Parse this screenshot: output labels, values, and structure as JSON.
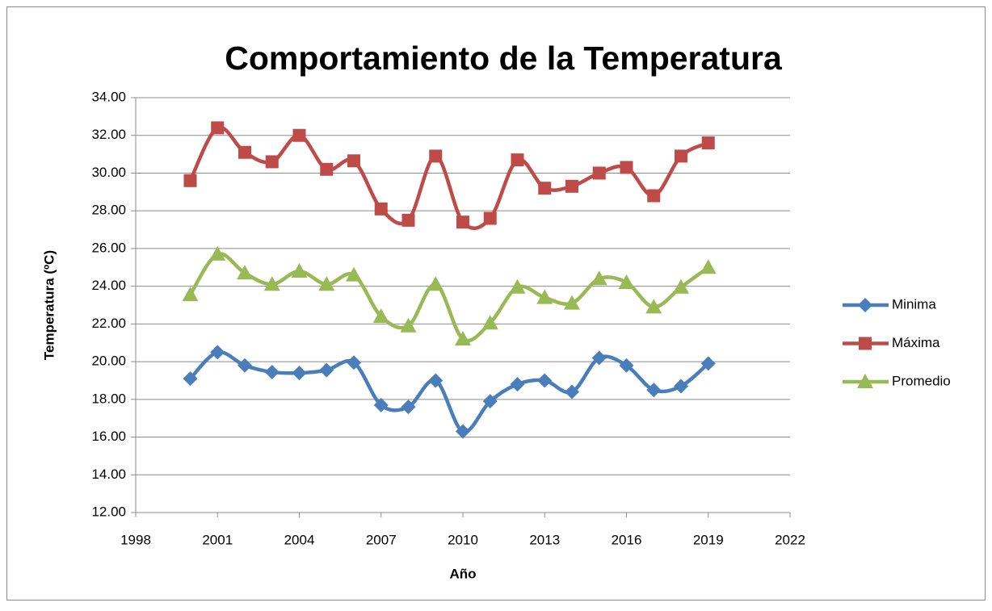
{
  "chart_data": {
    "type": "line",
    "title": "Comportamiento de la Temperatura",
    "xlabel": "Año",
    "ylabel": "Temperatura (ºC)",
    "x": [
      2000,
      2001,
      2002,
      2003,
      2004,
      2005,
      2006,
      2007,
      2008,
      2009,
      2010,
      2011,
      2012,
      2013,
      2014,
      2015,
      2016,
      2017,
      2018,
      2019
    ],
    "series": [
      {
        "name": "Minima",
        "color": "#4a7ebb",
        "marker": "diamond",
        "values": [
          19.1,
          20.5,
          19.8,
          19.45,
          19.4,
          19.55,
          19.95,
          17.7,
          17.6,
          19.0,
          16.3,
          17.9,
          18.8,
          19.0,
          18.4,
          20.2,
          19.8,
          18.5,
          18.7,
          19.9
        ]
      },
      {
        "name": "Máxima",
        "color": "#be4b48",
        "marker": "square",
        "values": [
          29.6,
          32.4,
          31.1,
          30.6,
          32.0,
          30.2,
          30.65,
          28.1,
          27.5,
          30.9,
          27.4,
          27.6,
          30.7,
          29.2,
          29.3,
          30.0,
          30.3,
          28.8,
          30.9,
          31.6
        ]
      },
      {
        "name": "Promedio",
        "color": "#98b954",
        "marker": "triangle",
        "values": [
          23.55,
          25.7,
          24.7,
          24.1,
          24.8,
          24.1,
          24.6,
          22.4,
          21.9,
          24.1,
          21.2,
          22.05,
          23.95,
          23.4,
          23.1,
          24.4,
          24.2,
          22.9,
          23.95,
          25.0
        ]
      }
    ],
    "xlim": [
      1998,
      2022
    ],
    "xticks": [
      1998,
      2001,
      2004,
      2007,
      2010,
      2013,
      2016,
      2019,
      2022
    ],
    "ylim": [
      12,
      34
    ],
    "yticks": [
      {
        "value": 12,
        "label": "12.00"
      },
      {
        "value": 14,
        "label": "14.00"
      },
      {
        "value": 16,
        "label": "16.00"
      },
      {
        "value": 18,
        "label": "18.00"
      },
      {
        "value": 20,
        "label": "20.00"
      },
      {
        "value": 22,
        "label": "22.00"
      },
      {
        "value": 24,
        "label": "24.00"
      },
      {
        "value": 26,
        "label": "26.00"
      },
      {
        "value": 28,
        "label": "28.00"
      },
      {
        "value": 30,
        "label": "30.00"
      },
      {
        "value": 32,
        "label": "32.00"
      },
      {
        "value": 34,
        "label": "34.00"
      }
    ],
    "grid": true,
    "smooth": true,
    "legend": "right"
  }
}
